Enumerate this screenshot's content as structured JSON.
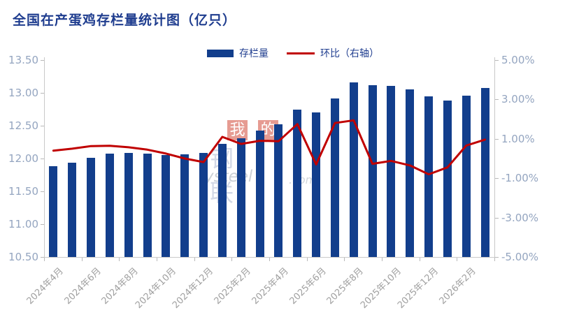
{
  "title": "全国在产蛋鸡存栏量统计图（亿只）",
  "legend": {
    "bar_label": "存栏量",
    "line_label": "环比（右轴）"
  },
  "watermark": {
    "block1": "我",
    "block2": "的",
    "chars": "钢联",
    "latin1": "ysteel",
    "latin2": ".com"
  },
  "colors": {
    "bar": "#123e8c",
    "line": "#c00000",
    "title_text": "#1f3d8f",
    "axis_label": "#94a5c0",
    "x_label": "#a0a0a0",
    "axis_line": "#c9c9c9"
  },
  "chart_data": {
    "type": "bar",
    "title": "全国在产蛋鸡存栏量统计图（亿只）",
    "categories": [
      "2024年4月",
      "2024年5月",
      "2024年6月",
      "2024年7月",
      "2024年8月",
      "2024年9月",
      "2024年10月",
      "2024年11月",
      "2024年12月",
      "2025年1月",
      "2025年2月",
      "2025年3月",
      "2025年4月",
      "2025年5月",
      "2025年6月",
      "2025年7月",
      "2025年8月",
      "2025年9月",
      "2025年10月",
      "2025年11月",
      "2025年12月",
      "2026年1月",
      "2026年2月",
      "2026年3月"
    ],
    "x_tick_labels": [
      "2024年4月",
      "2024年6月",
      "2024年8月",
      "2024年10月",
      "2024年12月",
      "2025年2月",
      "2025年4月",
      "2025年6月",
      "2025年8月",
      "2025年10月",
      "2025年12月",
      "2026年2月"
    ],
    "series": [
      {
        "name": "存栏量",
        "type": "bar",
        "axis": "left",
        "color": "#123e8c",
        "values": [
          11.88,
          11.94,
          12.01,
          12.07,
          12.09,
          12.07,
          12.05,
          12.06,
          12.09,
          12.22,
          12.31,
          12.43,
          12.52,
          12.74,
          12.7,
          12.92,
          13.16,
          13.12,
          13.11,
          13.05,
          12.95,
          12.88,
          12.96,
          13.07
        ]
      },
      {
        "name": "环比（右轴）",
        "type": "line",
        "axis": "right",
        "color": "#c00000",
        "values_pct": [
          0.4,
          0.5,
          0.63,
          0.65,
          0.57,
          0.45,
          0.25,
          0.0,
          -0.18,
          1.1,
          0.74,
          0.9,
          0.88,
          1.75,
          -0.3,
          1.8,
          1.94,
          -0.27,
          -0.12,
          -0.35,
          -0.8,
          -0.45,
          0.66,
          0.96
        ]
      }
    ],
    "left_axis": {
      "min": 10.5,
      "max": 13.5,
      "step": 0.5,
      "ticks": [
        "13.50",
        "13.00",
        "12.50",
        "12.00",
        "11.50",
        "11.00",
        "10.50"
      ]
    },
    "right_axis": {
      "min": -5,
      "max": 5,
      "step": 2,
      "ticks": [
        "5.00%",
        "3.00%",
        "1.00%",
        "-1.00%",
        "-3.00%",
        "-5.00%"
      ]
    },
    "grid": false,
    "legend_position": "top-center"
  }
}
